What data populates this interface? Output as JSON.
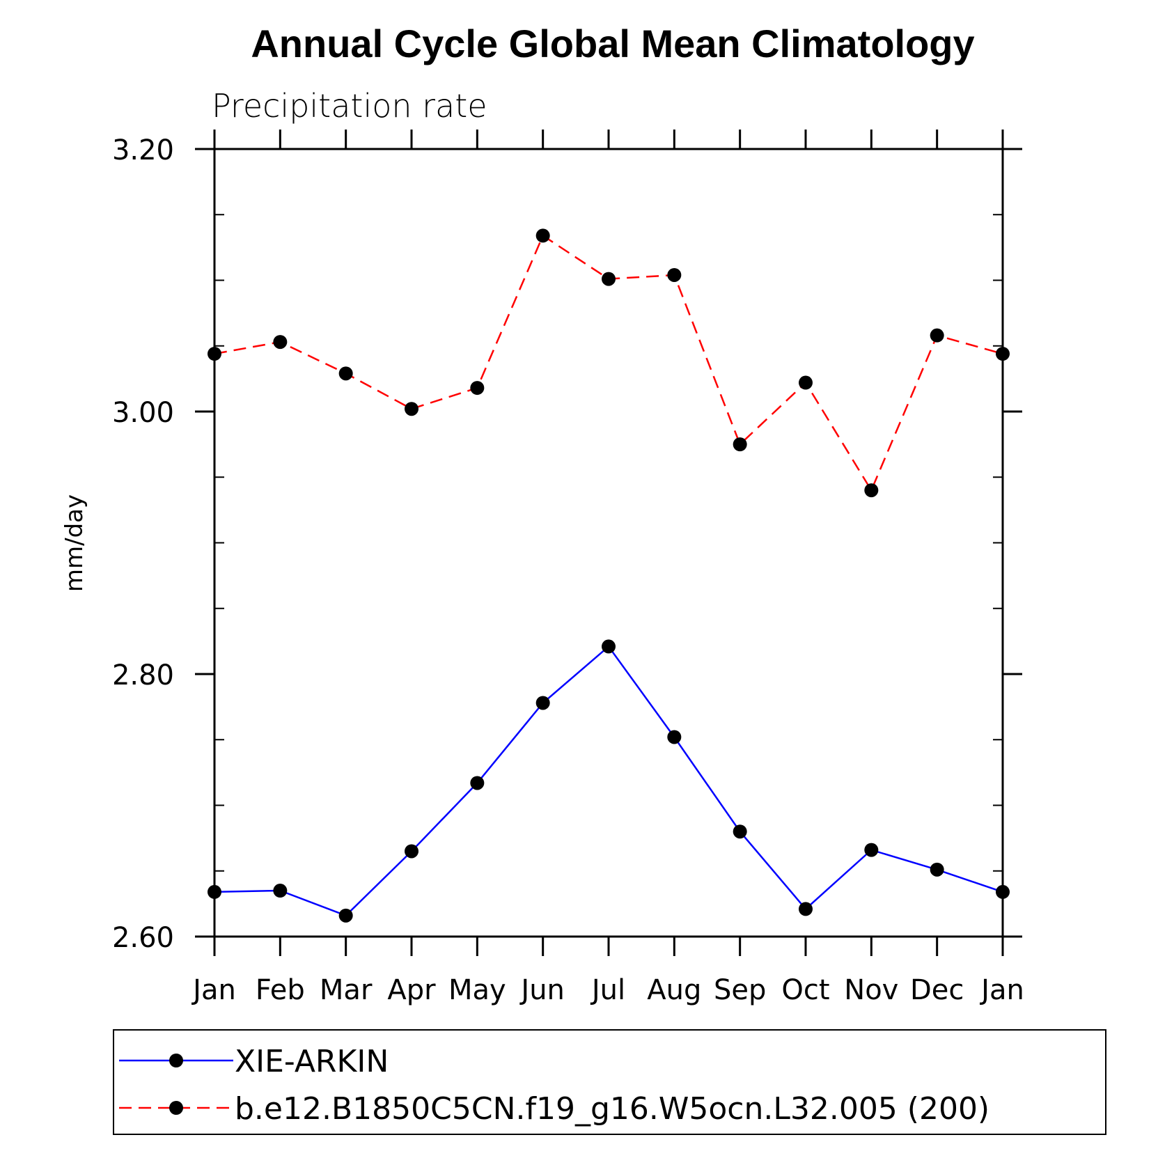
{
  "chart_data": {
    "type": "line",
    "title": "Annual Cycle Global Mean Climatology",
    "subtitle": "Precipitation rate",
    "ylabel": "mm/day",
    "xlabel": "",
    "categories": [
      "Jan",
      "Feb",
      "Mar",
      "Apr",
      "May",
      "Jun",
      "Jul",
      "Aug",
      "Sep",
      "Oct",
      "Nov",
      "Dec",
      "Jan"
    ],
    "ylim": [
      2.6,
      3.2
    ],
    "yticks": [
      2.6,
      2.8,
      3.0,
      3.2
    ],
    "ytick_labels": [
      "2.60",
      "2.80",
      "3.00",
      "3.20"
    ],
    "y_minor_step": 0.05,
    "legend_position": "bottom",
    "series": [
      {
        "name": "XIE-ARKIN",
        "color": "#0000ff",
        "style": "solid",
        "marker": "filled-circle",
        "values": [
          2.634,
          2.635,
          2.616,
          2.665,
          2.717,
          2.778,
          2.821,
          2.752,
          2.68,
          2.621,
          2.666,
          2.651,
          2.634
        ]
      },
      {
        "name": "b.e12.B1850C5CN.f19_g16.W5ocn.L32.005 (200)",
        "color": "#ff0000",
        "style": "dashed",
        "marker": "filled-circle",
        "values": [
          3.044,
          3.053,
          3.029,
          3.002,
          3.018,
          3.134,
          3.101,
          3.104,
          2.975,
          3.022,
          2.94,
          3.058,
          3.044
        ]
      }
    ]
  }
}
